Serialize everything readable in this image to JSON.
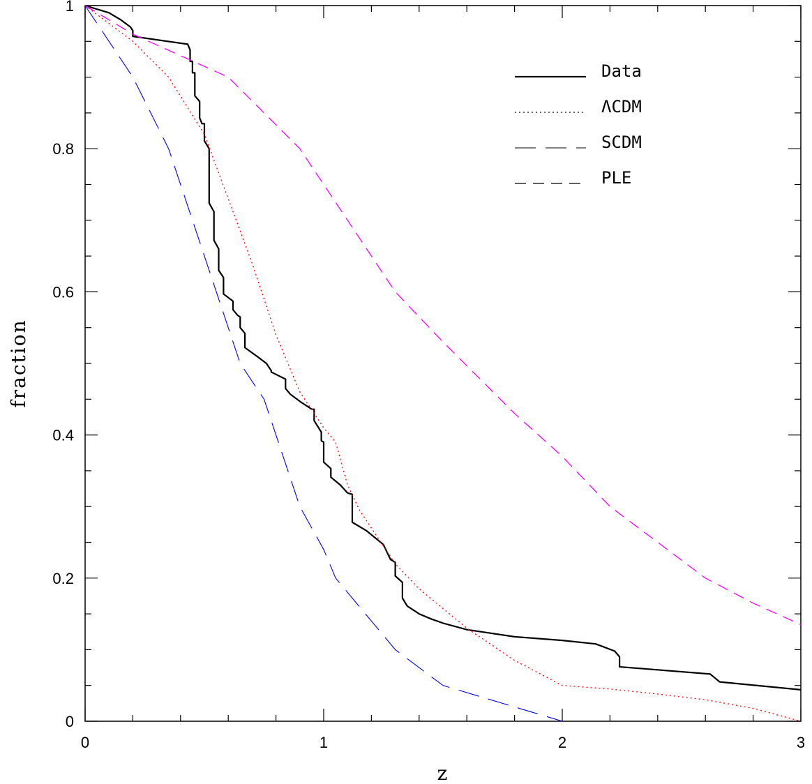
{
  "chart_data": {
    "type": "line",
    "title": "",
    "xlabel": "z",
    "ylabel": "fraction",
    "xlim": [
      0,
      3
    ],
    "ylim": [
      0,
      1
    ],
    "xticks": [
      {
        "value": 0,
        "label": "0"
      },
      {
        "value": 1,
        "label": "1"
      },
      {
        "value": 2,
        "label": "2"
      },
      {
        "value": 3,
        "label": "3"
      }
    ],
    "yticks": [
      {
        "value": 0,
        "label": "0"
      },
      {
        "value": 0.2,
        "label": "0.2"
      },
      {
        "value": 0.4,
        "label": "0.4"
      },
      {
        "value": 0.6,
        "label": "0.6"
      },
      {
        "value": 0.8,
        "label": "0.8"
      },
      {
        "value": 1,
        "label": "1"
      }
    ],
    "grid": false,
    "legend_position": "top-right",
    "series": [
      {
        "name": "Data",
        "style": "solid",
        "color": "#000000",
        "points": [
          [
            0,
            1
          ],
          [
            0.1,
            0.99
          ],
          [
            0.15,
            0.98
          ],
          [
            0.19,
            0.97
          ],
          [
            0.2,
            0.965
          ],
          [
            0.2,
            0.957
          ],
          [
            0.43,
            0.946
          ],
          [
            0.44,
            0.938
          ],
          [
            0.44,
            0.922
          ],
          [
            0.45,
            0.922
          ],
          [
            0.45,
            0.906
          ],
          [
            0.46,
            0.906
          ],
          [
            0.46,
            0.874
          ],
          [
            0.48,
            0.866
          ],
          [
            0.48,
            0.843
          ],
          [
            0.49,
            0.835
          ],
          [
            0.5,
            0.835
          ],
          [
            0.5,
            0.811
          ],
          [
            0.52,
            0.8
          ],
          [
            0.52,
            0.724
          ],
          [
            0.54,
            0.712
          ],
          [
            0.54,
            0.672
          ],
          [
            0.56,
            0.66
          ],
          [
            0.56,
            0.63
          ],
          [
            0.58,
            0.62
          ],
          [
            0.58,
            0.597
          ],
          [
            0.62,
            0.587
          ],
          [
            0.62,
            0.575
          ],
          [
            0.64,
            0.567
          ],
          [
            0.65,
            0.565
          ],
          [
            0.65,
            0.55
          ],
          [
            0.67,
            0.542
          ],
          [
            0.67,
            0.522
          ],
          [
            0.72,
            0.51
          ],
          [
            0.76,
            0.5
          ],
          [
            0.78,
            0.49
          ],
          [
            0.78,
            0.488
          ],
          [
            0.84,
            0.478
          ],
          [
            0.84,
            0.465
          ],
          [
            0.86,
            0.457
          ],
          [
            0.9,
            0.447
          ],
          [
            0.95,
            0.436
          ],
          [
            0.96,
            0.436
          ],
          [
            0.96,
            0.42
          ],
          [
            0.99,
            0.404
          ],
          [
            0.99,
            0.392
          ],
          [
            1.0,
            0.39
          ],
          [
            1.0,
            0.362
          ],
          [
            1.03,
            0.353
          ],
          [
            1.03,
            0.341
          ],
          [
            1.07,
            0.33
          ],
          [
            1.1,
            0.319
          ],
          [
            1.12,
            0.317
          ],
          [
            1.12,
            0.278
          ],
          [
            1.18,
            0.266
          ],
          [
            1.25,
            0.247
          ],
          [
            1.28,
            0.226
          ],
          [
            1.3,
            0.222
          ],
          [
            1.3,
            0.203
          ],
          [
            1.33,
            0.194
          ],
          [
            1.33,
            0.172
          ],
          [
            1.35,
            0.161
          ],
          [
            1.4,
            0.15
          ],
          [
            1.45,
            0.143
          ],
          [
            1.5,
            0.137
          ],
          [
            1.6,
            0.128
          ],
          [
            1.8,
            0.118
          ],
          [
            2.0,
            0.113
          ],
          [
            2.14,
            0.108
          ],
          [
            2.18,
            0.103
          ],
          [
            2.22,
            0.098
          ],
          [
            2.24,
            0.09
          ],
          [
            2.24,
            0.076
          ],
          [
            2.62,
            0.066
          ],
          [
            2.66,
            0.055
          ],
          [
            3.0,
            0.044
          ]
        ]
      },
      {
        "name": "ΛCDM",
        "style": "dotted",
        "color": "#ff0000",
        "points": [
          [
            0,
            1
          ],
          [
            0.1,
            0.975
          ],
          [
            0.2,
            0.95
          ],
          [
            0.35,
            0.9
          ],
          [
            0.5,
            0.82
          ],
          [
            0.6,
            0.73
          ],
          [
            0.7,
            0.64
          ],
          [
            0.8,
            0.54
          ],
          [
            0.9,
            0.46
          ],
          [
            1.0,
            0.41
          ],
          [
            1.05,
            0.39
          ],
          [
            1.1,
            0.33
          ],
          [
            1.15,
            0.295
          ],
          [
            1.2,
            0.27
          ],
          [
            1.3,
            0.22
          ],
          [
            1.4,
            0.185
          ],
          [
            1.6,
            0.13
          ],
          [
            1.8,
            0.085
          ],
          [
            2.0,
            0.05
          ],
          [
            2.2,
            0.045
          ],
          [
            2.4,
            0.038
          ],
          [
            2.6,
            0.03
          ],
          [
            2.8,
            0.018
          ],
          [
            3.0,
            0.0
          ]
        ]
      },
      {
        "name": "SCDM",
        "style": "long-dash",
        "color": "#0000ff",
        "points": [
          [
            0,
            1
          ],
          [
            0.1,
            0.95
          ],
          [
            0.2,
            0.9
          ],
          [
            0.35,
            0.8
          ],
          [
            0.45,
            0.7
          ],
          [
            0.55,
            0.6
          ],
          [
            0.65,
            0.5
          ],
          [
            0.75,
            0.45
          ],
          [
            0.8,
            0.4
          ],
          [
            0.9,
            0.3
          ],
          [
            1.0,
            0.24
          ],
          [
            1.05,
            0.2
          ],
          [
            1.3,
            0.1
          ],
          [
            1.5,
            0.05
          ],
          [
            1.75,
            0.025
          ],
          [
            2.0,
            0.0
          ]
        ]
      },
      {
        "name": "PLE",
        "style": "dashed",
        "color": "#ff00ff",
        "points": [
          [
            0,
            1
          ],
          [
            0.2,
            0.96
          ],
          [
            0.4,
            0.93
          ],
          [
            0.6,
            0.9
          ],
          [
            0.9,
            0.8
          ],
          [
            1.1,
            0.7
          ],
          [
            1.3,
            0.6
          ],
          [
            1.5,
            0.53
          ],
          [
            1.8,
            0.43
          ],
          [
            2.0,
            0.37
          ],
          [
            2.2,
            0.3
          ],
          [
            2.4,
            0.25
          ],
          [
            2.6,
            0.2
          ],
          [
            2.8,
            0.165
          ],
          [
            3.0,
            0.135
          ]
        ]
      }
    ]
  }
}
